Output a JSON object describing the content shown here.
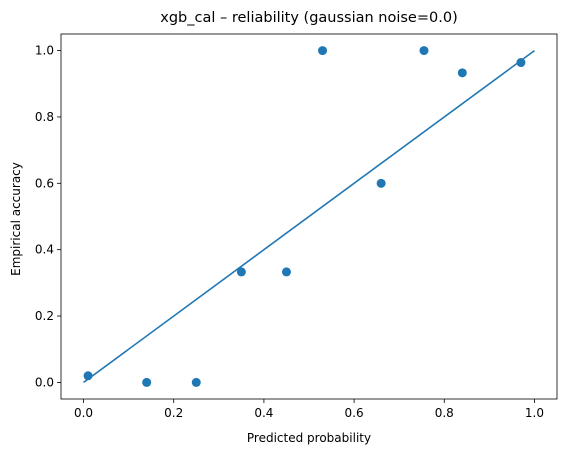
{
  "chart_data": {
    "type": "scatter",
    "title": "xgb_cal – reliability (gaussian noise=0.0)",
    "xlabel": "Predicted probability",
    "ylabel": "Empirical accuracy",
    "xlim": [
      -0.05,
      1.05
    ],
    "ylim": [
      -0.05,
      1.05
    ],
    "xticks": [
      "0.0",
      "0.2",
      "0.4",
      "0.6",
      "0.8",
      "1.0"
    ],
    "yticks": [
      "0.0",
      "0.2",
      "0.4",
      "0.6",
      "0.8",
      "1.0"
    ],
    "grid": false,
    "legend": "none",
    "color": "#1f77b4",
    "series": [
      {
        "type": "line",
        "x": [
          0.0,
          1.0
        ],
        "y": [
          0.0,
          1.0
        ]
      },
      {
        "type": "scatter",
        "x": [
          0.01,
          0.14,
          0.25,
          0.35,
          0.45,
          0.53,
          0.66,
          0.755,
          0.84,
          0.97
        ],
        "y": [
          0.02,
          0.0,
          0.0,
          0.333,
          0.333,
          1.0,
          0.6,
          1.0,
          0.933,
          0.964
        ]
      }
    ]
  }
}
